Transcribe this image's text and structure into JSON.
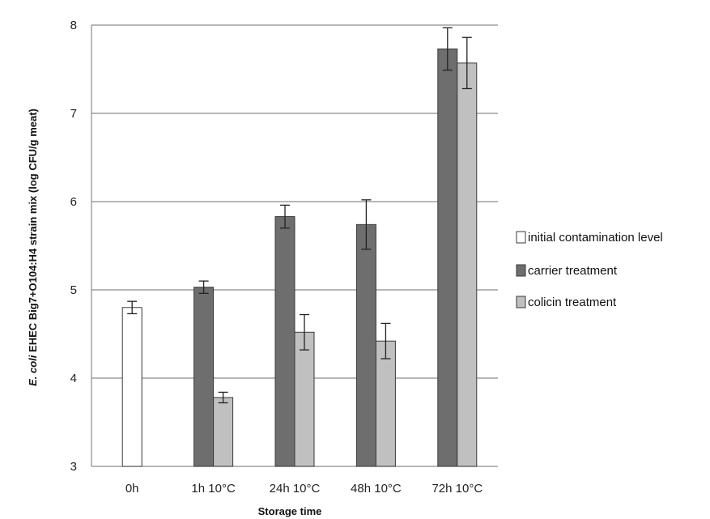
{
  "chart_data": {
    "type": "bar",
    "title": "",
    "xlabel": "Storage time",
    "ylabel_prefix": "E. coli",
    "ylabel_rest": " EHEC Big7+O104:H4 strain mix (log CFU/g meat)",
    "ylim": [
      3,
      8
    ],
    "yticks": [
      "3",
      "4",
      "5",
      "6",
      "7",
      "8"
    ],
    "grid": true,
    "legend_position": "right",
    "categories": [
      "0h",
      "1h 10°C",
      "24h 10°C",
      "48h 10°C",
      "72h 10°C"
    ],
    "series": [
      {
        "name": "initial contamination level",
        "color": "#ffffff",
        "values": [
          4.8,
          null,
          null,
          null,
          null
        ],
        "errors": [
          0.07,
          null,
          null,
          null,
          null
        ]
      },
      {
        "name": "carrier treatment",
        "color": "#6e6e6e",
        "values": [
          null,
          5.03,
          5.83,
          5.74,
          7.73
        ],
        "errors": [
          null,
          0.07,
          0.13,
          0.28,
          0.24
        ]
      },
      {
        "name": "colicin treatment",
        "color": "#c0c0c0",
        "values": [
          null,
          3.78,
          4.52,
          4.42,
          7.57
        ],
        "errors": [
          null,
          0.06,
          0.2,
          0.2,
          0.29
        ]
      }
    ]
  }
}
